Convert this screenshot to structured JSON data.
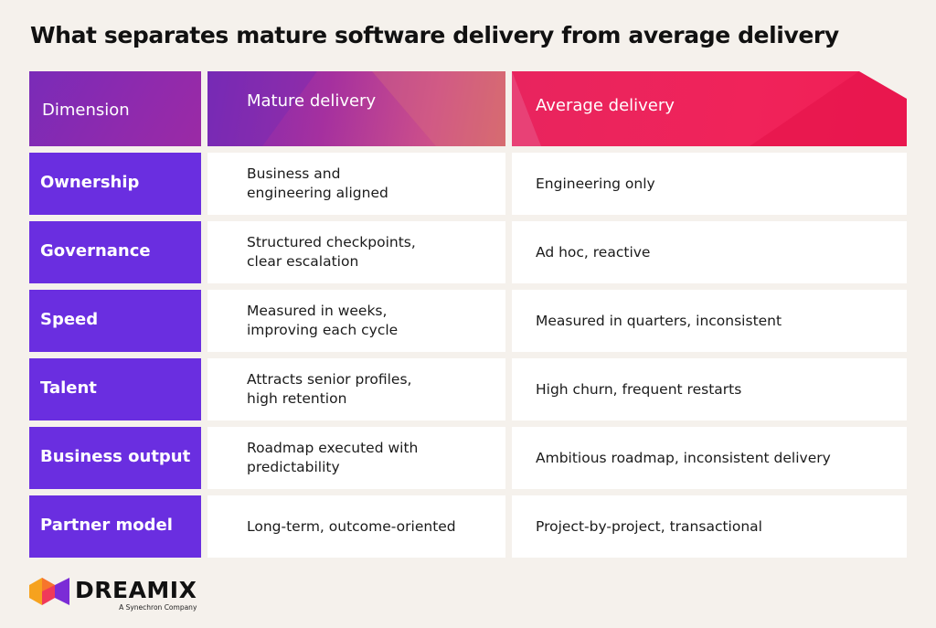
{
  "title": "What separates mature software delivery from average delivery",
  "headers": {
    "dimension": "Dimension",
    "mature": "Mature delivery",
    "average": "Average delivery"
  },
  "rows": [
    {
      "dimension": "Ownership",
      "mature": "Business and engineering aligned",
      "average": "Engineering only"
    },
    {
      "dimension": "Governance",
      "mature": "Structured checkpoints, clear escalation",
      "average": "Ad hoc, reactive"
    },
    {
      "dimension": "Speed",
      "mature": "Measured in weeks, improving each cycle",
      "average": "Measured in quarters, inconsistent"
    },
    {
      "dimension": "Talent",
      "mature": "Attracts senior profiles, high retention",
      "average": "High churn, frequent restarts"
    },
    {
      "dimension": "Business output",
      "mature": "Roadmap executed with predictability",
      "average": "Ambitious roadmap, inconsistent delivery"
    },
    {
      "dimension": "Partner model",
      "mature": "Long-term, outcome-oriented",
      "average": "Project-by-project, transactional"
    }
  ],
  "logo": {
    "word": "DREAMIX",
    "sub": "A Synechron Company"
  },
  "colors": {
    "background": "#f5f1ec",
    "dimension_cell": "#6a2ee0",
    "header_average": "#f0235a",
    "header_mature": "#a5309f"
  }
}
